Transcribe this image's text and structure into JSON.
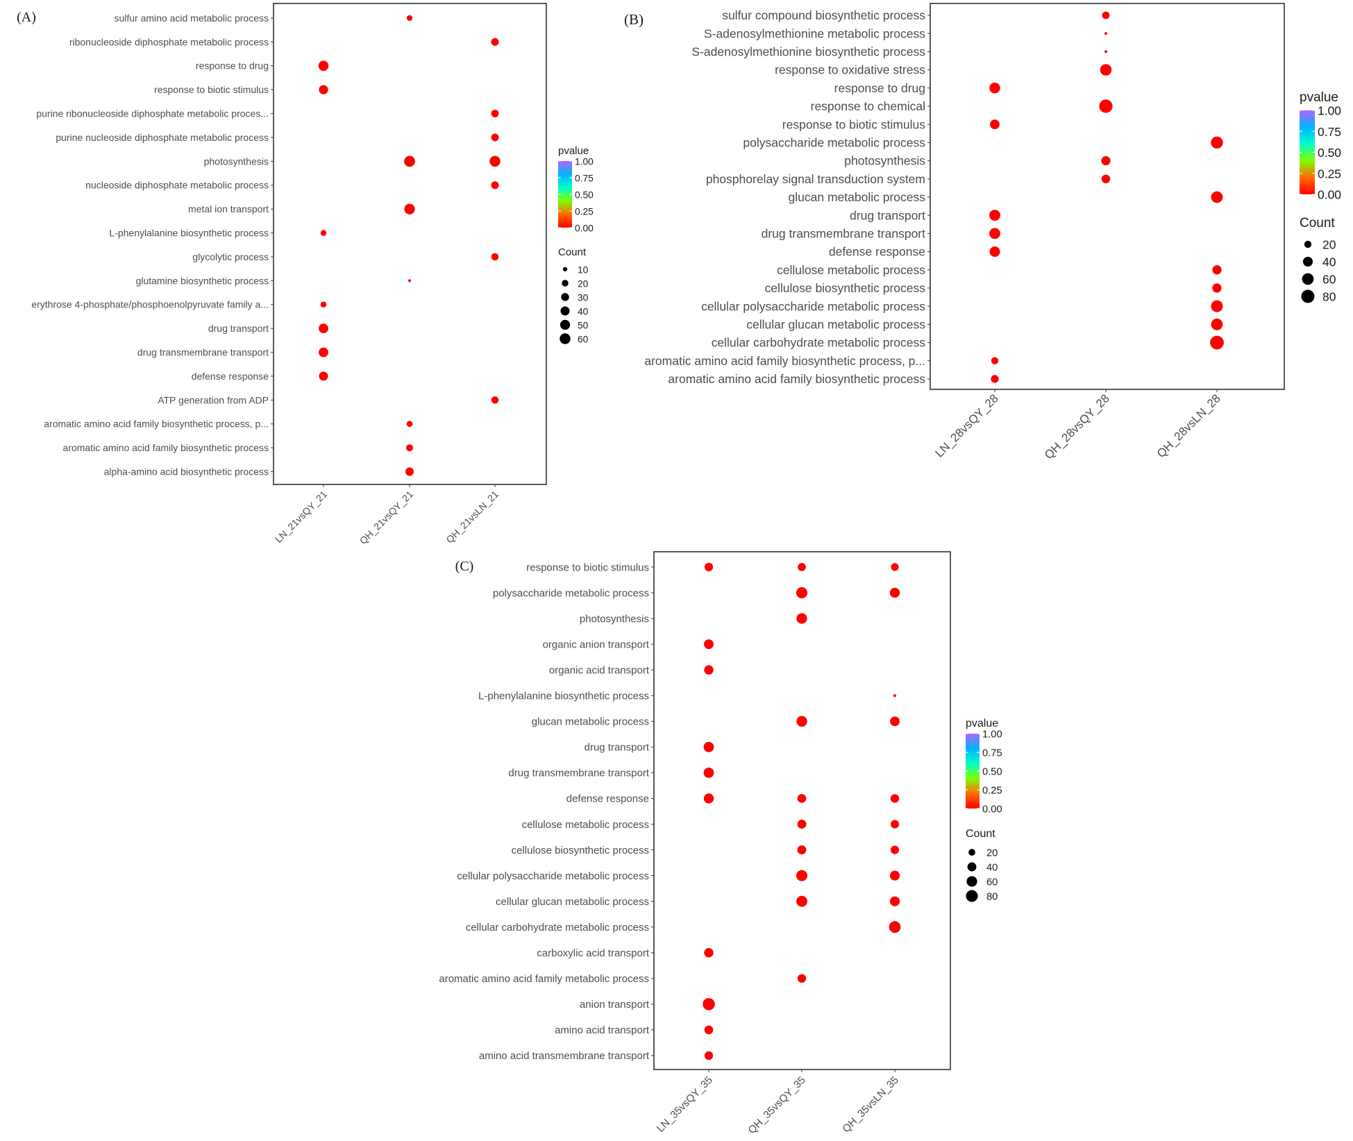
{
  "chart_data": [
    {
      "type": "scatter",
      "panel_label": "(A)",
      "x_categories": [
        "LN_21vsQY_21",
        "QH_21vsQY_21",
        "QH_21vsLN_21"
      ],
      "y_categories": [
        "sulfur amino acid metabolic process",
        "ribonucleoside diphosphate metabolic process",
        "response to drug",
        "response to biotic stimulus",
        "purine ribonucleoside diphosphate metabolic proces...",
        "purine nucleoside diphosphate metabolic process",
        "photosynthesis",
        "nucleoside diphosphate metabolic process",
        "metal ion transport",
        "L-phenylalanine biosynthetic process",
        "glycolytic process",
        "glutamine biosynthetic process",
        "erythrose 4-phosphate/phosphoenolpyruvate family a...",
        "drug transport",
        "drug transmembrane transport",
        "defense response",
        "ATP generation from ADP",
        "aromatic amino acid family biosynthetic process, p...",
        "aromatic amino acid family biosynthetic process",
        "alpha-amino acid biosynthetic process"
      ],
      "points": [
        {
          "x": "QH_21vsQY_21",
          "y": "sulfur amino acid metabolic process",
          "count": 15,
          "pvalue": 0.0
        },
        {
          "x": "QH_21vsLN_21",
          "y": "ribonucleoside diphosphate metabolic process",
          "count": 28,
          "pvalue": 0.0
        },
        {
          "x": "LN_21vsQY_21",
          "y": "response to drug",
          "count": 52,
          "pvalue": 0.0
        },
        {
          "x": "LN_21vsQY_21",
          "y": "response to biotic stimulus",
          "count": 42,
          "pvalue": 0.0
        },
        {
          "x": "QH_21vsLN_21",
          "y": "purine ribonucleoside diphosphate metabolic proces...",
          "count": 27,
          "pvalue": 0.0
        },
        {
          "x": "QH_21vsLN_21",
          "y": "purine nucleoside diphosphate metabolic process",
          "count": 27,
          "pvalue": 0.0
        },
        {
          "x": "QH_21vsQY_21",
          "y": "photosynthesis",
          "count": 62,
          "pvalue": 0.0
        },
        {
          "x": "QH_21vsLN_21",
          "y": "photosynthesis",
          "count": 60,
          "pvalue": 0.0
        },
        {
          "x": "QH_21vsLN_21",
          "y": "nucleoside diphosphate metabolic process",
          "count": 28,
          "pvalue": 0.0
        },
        {
          "x": "QH_21vsQY_21",
          "y": "metal ion transport",
          "count": 58,
          "pvalue": 0.0
        },
        {
          "x": "LN_21vsQY_21",
          "y": "L-phenylalanine biosynthetic process",
          "count": 16,
          "pvalue": 0.0
        },
        {
          "x": "QH_21vsLN_21",
          "y": "glycolytic process",
          "count": 25,
          "pvalue": 0.0
        },
        {
          "x": "QH_21vsQY_21",
          "y": "glutamine biosynthetic process",
          "count": 8,
          "pvalue": 0.0
        },
        {
          "x": "LN_21vsQY_21",
          "y": "erythrose 4-phosphate/phosphoenolpyruvate family a...",
          "count": 16,
          "pvalue": 0.0
        },
        {
          "x": "LN_21vsQY_21",
          "y": "drug transport",
          "count": 46,
          "pvalue": 0.0
        },
        {
          "x": "LN_21vsQY_21",
          "y": "drug transmembrane transport",
          "count": 46,
          "pvalue": 0.0
        },
        {
          "x": "LN_21vsQY_21",
          "y": "defense response",
          "count": 40,
          "pvalue": 0.0
        },
        {
          "x": "QH_21vsLN_21",
          "y": "ATP generation from ADP",
          "count": 25,
          "pvalue": 0.0
        },
        {
          "x": "QH_21vsQY_21",
          "y": "aromatic amino acid family biosynthetic process, p...",
          "count": 17,
          "pvalue": 0.0
        },
        {
          "x": "QH_21vsQY_21",
          "y": "aromatic amino acid family biosynthetic process",
          "count": 22,
          "pvalue": 0.0
        },
        {
          "x": "QH_21vsQY_21",
          "y": "alpha-amino acid biosynthetic process",
          "count": 34,
          "pvalue": 0.0
        }
      ],
      "count_range": [
        8,
        65
      ],
      "legend": {
        "color_title": "pvalue",
        "color_ticks": [
          "1.00",
          "0.75",
          "0.50",
          "0.25",
          "0.00"
        ],
        "color_tick_values": [
          1.0,
          0.75,
          0.5,
          0.25,
          0.0
        ],
        "size_title": "Count",
        "size_labels": [
          "10",
          "20",
          "30",
          "40",
          "50",
          "60"
        ],
        "size_values": [
          10,
          20,
          30,
          40,
          50,
          60
        ]
      }
    },
    {
      "type": "scatter",
      "panel_label": "(B)",
      "x_categories": [
        "LN_28vsQY_28",
        "QH_28vsQY_28",
        "QH_28vsLN_28"
      ],
      "y_categories": [
        "sulfur compound biosynthetic process",
        "S-adenosylmethionine metabolic process",
        "S-adenosylmethionine biosynthetic process",
        "response to oxidative stress",
        "response to drug",
        "response to chemical",
        "response to biotic stimulus",
        "polysaccharide metabolic process",
        "photosynthesis",
        "phosphorelay signal transduction system",
        "glucan metabolic process",
        "drug transport",
        "drug transmembrane transport",
        "defense response",
        "cellulose metabolic process",
        "cellulose biosynthetic process",
        "cellular polysaccharide metabolic process",
        "cellular glucan metabolic process",
        "cellular carbohydrate metabolic process",
        "aromatic amino acid family biosynthetic process, p...",
        "aromatic amino acid family biosynthetic process"
      ],
      "points": [
        {
          "x": "QH_28vsQY_28",
          "y": "sulfur compound biosynthetic process",
          "count": 22,
          "pvalue": 0.0
        },
        {
          "x": "QH_28vsQY_28",
          "y": "S-adenosylmethionine metabolic process",
          "count": 7,
          "pvalue": 0.0
        },
        {
          "x": "QH_28vsQY_28",
          "y": "S-adenosylmethionine biosynthetic process",
          "count": 7,
          "pvalue": 0.0
        },
        {
          "x": "QH_28vsQY_28",
          "y": "response to oxidative stress",
          "count": 58,
          "pvalue": 0.0
        },
        {
          "x": "LN_28vsQY_28",
          "y": "response to drug",
          "count": 50,
          "pvalue": 0.0
        },
        {
          "x": "QH_28vsQY_28",
          "y": "response to chemical",
          "count": 82,
          "pvalue": 0.0
        },
        {
          "x": "LN_28vsQY_28",
          "y": "response to biotic stimulus",
          "count": 38,
          "pvalue": 0.0
        },
        {
          "x": "QH_28vsLN_28",
          "y": "polysaccharide metabolic process",
          "count": 65,
          "pvalue": 0.0
        },
        {
          "x": "QH_28vsQY_28",
          "y": "photosynthesis",
          "count": 34,
          "pvalue": 0.0
        },
        {
          "x": "QH_28vsQY_28",
          "y": "phosphorelay signal transduction system",
          "count": 30,
          "pvalue": 0.0
        },
        {
          "x": "QH_28vsLN_28",
          "y": "glucan metabolic process",
          "count": 60,
          "pvalue": 0.0
        },
        {
          "x": "LN_28vsQY_28",
          "y": "drug transport",
          "count": 52,
          "pvalue": 0.0
        },
        {
          "x": "LN_28vsQY_28",
          "y": "drug transmembrane transport",
          "count": 52,
          "pvalue": 0.0
        },
        {
          "x": "LN_28vsQY_28",
          "y": "defense response",
          "count": 46,
          "pvalue": 0.0
        },
        {
          "x": "QH_28vsLN_28",
          "y": "cellulose metabolic process",
          "count": 35,
          "pvalue": 0.0
        },
        {
          "x": "QH_28vsLN_28",
          "y": "cellulose biosynthetic process",
          "count": 35,
          "pvalue": 0.0
        },
        {
          "x": "QH_28vsLN_28",
          "y": "cellular polysaccharide metabolic process",
          "count": 62,
          "pvalue": 0.0
        },
        {
          "x": "QH_28vsLN_28",
          "y": "cellular glucan metabolic process",
          "count": 60,
          "pvalue": 0.0
        },
        {
          "x": "QH_28vsLN_28",
          "y": "cellular carbohydrate metabolic process",
          "count": 88,
          "pvalue": 0.0
        },
        {
          "x": "LN_28vsQY_28",
          "y": "aromatic amino acid family biosynthetic process, p...",
          "count": 20,
          "pvalue": 0.0
        },
        {
          "x": "LN_28vsQY_28",
          "y": "aromatic amino acid family biosynthetic process",
          "count": 24,
          "pvalue": 0.0
        }
      ],
      "count_range": [
        7,
        90
      ],
      "legend": {
        "color_title": "pvalue",
        "color_ticks": [
          "1.00",
          "0.75",
          "0.50",
          "0.25",
          "0.00"
        ],
        "color_tick_values": [
          1.0,
          0.75,
          0.5,
          0.25,
          0.0
        ],
        "size_title": "Count",
        "size_labels": [
          "20",
          "40",
          "60",
          "80"
        ],
        "size_values": [
          20,
          40,
          60,
          80
        ]
      }
    },
    {
      "type": "scatter",
      "panel_label": "(C)",
      "x_categories": [
        "LN_35vsQY_35",
        "QH_35vsQY_35",
        "QH_35vsLN_35"
      ],
      "y_categories": [
        "response to biotic stimulus",
        "polysaccharide metabolic process",
        "photosynthesis",
        "organic anion transport",
        "organic acid transport",
        "L-phenylalanine biosynthetic process",
        "glucan metabolic process",
        "drug transport",
        "drug transmembrane transport",
        "defense response",
        "cellulose metabolic process",
        "cellulose biosynthetic process",
        "cellular polysaccharide metabolic process",
        "cellular glucan metabolic process",
        "cellular carbohydrate metabolic process",
        "carboxylic acid transport",
        "aromatic amino acid family metabolic process",
        "anion transport",
        "amino acid transport",
        "amino acid transmembrane transport"
      ],
      "points": [
        {
          "x": "LN_35vsQY_35",
          "y": "response to biotic stimulus",
          "count": 35,
          "pvalue": 0.0
        },
        {
          "x": "QH_35vsQY_35",
          "y": "response to biotic stimulus",
          "count": 32,
          "pvalue": 0.0
        },
        {
          "x": "QH_35vsLN_35",
          "y": "response to biotic stimulus",
          "count": 28,
          "pvalue": 0.0
        },
        {
          "x": "QH_35vsQY_35",
          "y": "polysaccharide metabolic process",
          "count": 70,
          "pvalue": 0.0
        },
        {
          "x": "QH_35vsLN_35",
          "y": "polysaccharide metabolic process",
          "count": 52,
          "pvalue": 0.0
        },
        {
          "x": "QH_35vsQY_35",
          "y": "photosynthesis",
          "count": 60,
          "pvalue": 0.0
        },
        {
          "x": "LN_35vsQY_35",
          "y": "organic anion transport",
          "count": 48,
          "pvalue": 0.0
        },
        {
          "x": "LN_35vsQY_35",
          "y": "organic acid transport",
          "count": 44,
          "pvalue": 0.0
        },
        {
          "x": "QH_35vsLN_35",
          "y": "L-phenylalanine biosynthetic process",
          "count": 6,
          "pvalue": 0.0
        },
        {
          "x": "QH_35vsQY_35",
          "y": "glucan metabolic process",
          "count": 62,
          "pvalue": 0.0
        },
        {
          "x": "QH_35vsLN_35",
          "y": "glucan metabolic process",
          "count": 48,
          "pvalue": 0.0
        },
        {
          "x": "LN_35vsQY_35",
          "y": "drug transport",
          "count": 56,
          "pvalue": 0.0
        },
        {
          "x": "LN_35vsQY_35",
          "y": "drug transmembrane transport",
          "count": 56,
          "pvalue": 0.0
        },
        {
          "x": "LN_35vsQY_35",
          "y": "defense response",
          "count": 52,
          "pvalue": 0.0
        },
        {
          "x": "QH_35vsQY_35",
          "y": "defense response",
          "count": 38,
          "pvalue": 0.0
        },
        {
          "x": "QH_35vsLN_35",
          "y": "defense response",
          "count": 36,
          "pvalue": 0.0
        },
        {
          "x": "QH_35vsQY_35",
          "y": "cellulose metabolic process",
          "count": 40,
          "pvalue": 0.0
        },
        {
          "x": "QH_35vsLN_35",
          "y": "cellulose metabolic process",
          "count": 34,
          "pvalue": 0.0
        },
        {
          "x": "QH_35vsQY_35",
          "y": "cellulose biosynthetic process",
          "count": 40,
          "pvalue": 0.0
        },
        {
          "x": "QH_35vsLN_35",
          "y": "cellulose biosynthetic process",
          "count": 34,
          "pvalue": 0.0
        },
        {
          "x": "QH_35vsQY_35",
          "y": "cellular polysaccharide metabolic process",
          "count": 68,
          "pvalue": 0.0
        },
        {
          "x": "QH_35vsLN_35",
          "y": "cellular polysaccharide metabolic process",
          "count": 50,
          "pvalue": 0.0
        },
        {
          "x": "QH_35vsQY_35",
          "y": "cellular glucan metabolic process",
          "count": 66,
          "pvalue": 0.0
        },
        {
          "x": "QH_35vsLN_35",
          "y": "cellular glucan metabolic process",
          "count": 50,
          "pvalue": 0.0
        },
        {
          "x": "QH_35vsLN_35",
          "y": "cellular carbohydrate metabolic process",
          "count": 76,
          "pvalue": 0.0
        },
        {
          "x": "LN_35vsQY_35",
          "y": "carboxylic acid transport",
          "count": 44,
          "pvalue": 0.0
        },
        {
          "x": "QH_35vsQY_35",
          "y": "aromatic amino acid family metabolic process",
          "count": 36,
          "pvalue": 0.0
        },
        {
          "x": "LN_35vsQY_35",
          "y": "anion transport",
          "count": 84,
          "pvalue": 0.0
        },
        {
          "x": "LN_35vsQY_35",
          "y": "amino acid transport",
          "count": 38,
          "pvalue": 0.0
        },
        {
          "x": "LN_35vsQY_35",
          "y": "amino acid transmembrane transport",
          "count": 36,
          "pvalue": 0.0
        }
      ],
      "count_range": [
        6,
        90
      ],
      "legend": {
        "color_title": "pvalue",
        "color_ticks": [
          "1.00",
          "0.75",
          "0.50",
          "0.25",
          "0.00"
        ],
        "color_tick_values": [
          1.0,
          0.75,
          0.5,
          0.25,
          0.0
        ],
        "size_title": "Count",
        "size_labels": [
          "20",
          "40",
          "60",
          "80"
        ],
        "size_values": [
          20,
          40,
          60,
          80
        ]
      }
    }
  ],
  "colors": {
    "low_p": "#ff0000",
    "gradient": [
      "#ff0000",
      "#ff6a00",
      "#7cff00",
      "#00ffc8",
      "#00b4ff",
      "#b066ff"
    ],
    "axis": "#000000",
    "text": "#4d4d4d"
  }
}
